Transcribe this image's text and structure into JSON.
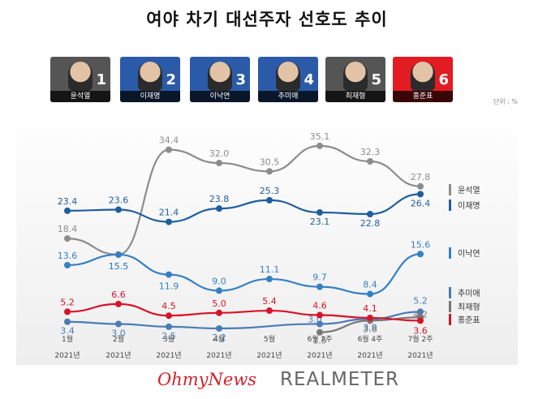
{
  "title": "여야 차기 대선주자 선호도 추이",
  "unit": "단위 : %",
  "candidates": [
    {
      "name": "윤석열",
      "num": "1",
      "bg": "#555555"
    },
    {
      "name": "이재명",
      "num": "2",
      "bg": "#2b5aa8"
    },
    {
      "name": "이낙연",
      "num": "3",
      "bg": "#2b5aa8"
    },
    {
      "name": "추미애",
      "num": "4",
      "bg": "#2b5aa8"
    },
    {
      "name": "최재형",
      "num": "5",
      "bg": "#555555"
    },
    {
      "name": "홍준표",
      "num": "6",
      "bg": "#e31b23"
    }
  ],
  "chart_data": {
    "type": "line",
    "x": [
      "1월",
      "2월",
      "3월",
      "4월",
      "5월",
      "6월 2주",
      "6월 4주",
      "7월 2주"
    ],
    "x_year": "2021년",
    "series": [
      {
        "name": "윤석열",
        "color": "#8c8c8c",
        "values": [
          18.4,
          15.5,
          34.4,
          32.0,
          30.5,
          35.1,
          32.3,
          27.8
        ]
      },
      {
        "name": "이재명",
        "color": "#1f5e9e",
        "values": [
          23.4,
          23.6,
          21.4,
          23.8,
          25.3,
          23.1,
          22.8,
          26.4
        ]
      },
      {
        "name": "이낙연",
        "color": "#3580c4",
        "values": [
          13.6,
          15.5,
          11.9,
          9.0,
          11.1,
          9.7,
          8.4,
          15.6
        ]
      },
      {
        "name": "추미애",
        "color": "#4a7bb7",
        "values": [
          3.4,
          3.0,
          2.5,
          2.2,
          null,
          3.0,
          3.9,
          5.2
        ]
      },
      {
        "name": "최재형",
        "color": "#777777",
        "values": [
          null,
          null,
          null,
          null,
          null,
          1.5,
          3.6,
          4.2
        ]
      },
      {
        "name": "홍준표",
        "color": "#d8132a",
        "values": [
          5.2,
          6.6,
          4.5,
          5.0,
          5.4,
          4.6,
          4.1,
          3.6
        ]
      }
    ],
    "ylim": [
      0,
      38
    ],
    "legend": "right"
  },
  "footer": {
    "logo1": "OhmyNews",
    "logo2": "REALMETER"
  }
}
